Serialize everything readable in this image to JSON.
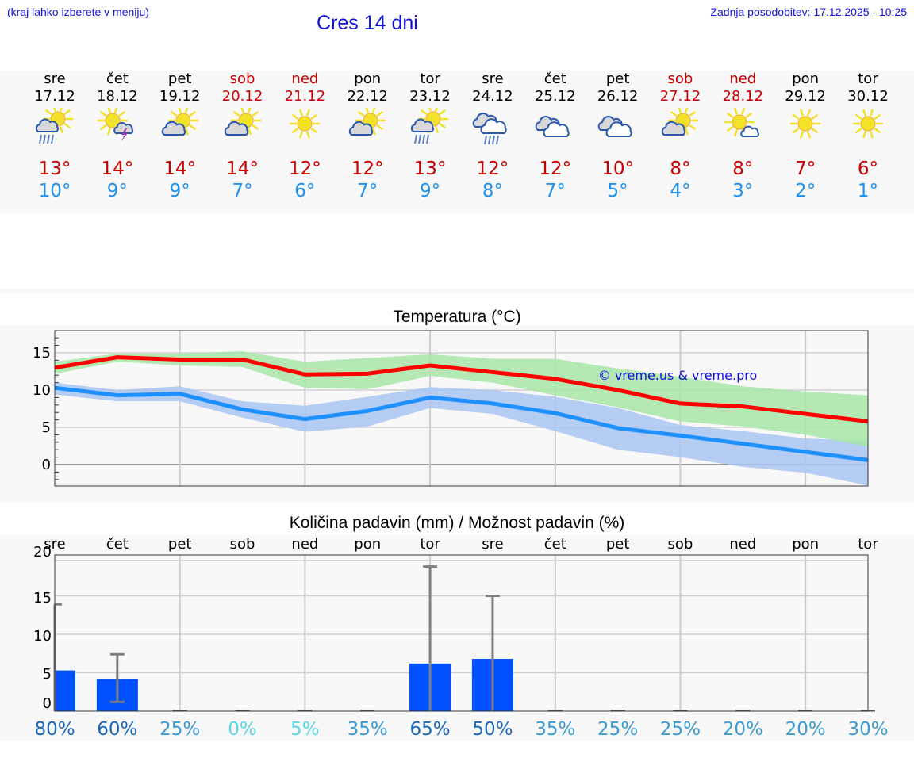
{
  "header": {
    "menu_hint": "(kraj lahko izberete v meniju)",
    "title": "Cres 14 dni",
    "last_update": "Zadnja posodobitev: 17.12.2025 - 10:25"
  },
  "days": [
    {
      "name": "sre",
      "date": "17.12",
      "weekend": false,
      "icon": "sun-cloud-rain-icon",
      "tmax": "13°",
      "tmin": "10°"
    },
    {
      "name": "čet",
      "date": "18.12",
      "weekend": false,
      "icon": "sun-cloud-thunder-icon",
      "tmax": "14°",
      "tmin": "9°"
    },
    {
      "name": "pet",
      "date": "19.12",
      "weekend": false,
      "icon": "sun-cloud-icon",
      "tmax": "14°",
      "tmin": "9°"
    },
    {
      "name": "sob",
      "date": "20.12",
      "weekend": true,
      "icon": "sun-cloud-icon",
      "tmax": "14°",
      "tmin": "7°"
    },
    {
      "name": "ned",
      "date": "21.12",
      "weekend": true,
      "icon": "sun-icon",
      "tmax": "12°",
      "tmin": "6°"
    },
    {
      "name": "pon",
      "date": "22.12",
      "weekend": false,
      "icon": "sun-cloud-icon",
      "tmax": "12°",
      "tmin": "7°"
    },
    {
      "name": "tor",
      "date": "23.12",
      "weekend": false,
      "icon": "sun-cloud-rain-icon",
      "tmax": "13°",
      "tmin": "9°"
    },
    {
      "name": "sre",
      "date": "24.12",
      "weekend": false,
      "icon": "clouds-rain-icon",
      "tmax": "12°",
      "tmin": "8°"
    },
    {
      "name": "čet",
      "date": "25.12",
      "weekend": false,
      "icon": "clouds-icon",
      "tmax": "12°",
      "tmin": "7°"
    },
    {
      "name": "pet",
      "date": "26.12",
      "weekend": false,
      "icon": "clouds-icon",
      "tmax": "10°",
      "tmin": "5°"
    },
    {
      "name": "sob",
      "date": "27.12",
      "weekend": true,
      "icon": "sun-cloud-icon",
      "tmax": "8°",
      "tmin": "4°"
    },
    {
      "name": "ned",
      "date": "28.12",
      "weekend": true,
      "icon": "sun-small-cloud-icon",
      "tmax": "8°",
      "tmin": "3°"
    },
    {
      "name": "pon",
      "date": "29.12",
      "weekend": false,
      "icon": "sun-icon",
      "tmax": "7°",
      "tmin": "2°"
    },
    {
      "name": "tor",
      "date": "30.12",
      "weekend": false,
      "icon": "sun-icon",
      "tmax": "6°",
      "tmin": "1°"
    }
  ],
  "colors": {
    "weekend": "#cc0000",
    "weekday": "#000000",
    "tmax_text": "#cc0000",
    "tmin_text": "#2090ee",
    "tmax_line": "#ff0000",
    "tmin_line": "#1e90ff",
    "tmax_band": "#a8e6a8",
    "tmin_band": "#a9c4f2",
    "precip_bar": "#0050ff",
    "error_bar": "#808080",
    "link_blue": "#1010e0"
  },
  "chart_data": [
    {
      "type": "line",
      "title": "Temperatura (°C)",
      "watermark": "© vreme.us & vreme.pro",
      "x": [
        "17.12",
        "18.12",
        "19.12",
        "20.12",
        "21.12",
        "22.12",
        "23.12",
        "24.12",
        "25.12",
        "26.12",
        "27.12",
        "28.12",
        "29.12",
        "30.12"
      ],
      "yticks": [
        0,
        5,
        10,
        15
      ],
      "ylim": [
        -2.9,
        18
      ],
      "grid": true,
      "series": [
        {
          "name": "Tmax",
          "color": "#ff0000",
          "values": [
            13.0,
            14.4,
            14.1,
            14.1,
            12.1,
            12.2,
            13.3,
            12.4,
            11.5,
            10.0,
            8.2,
            7.8,
            6.8,
            5.8
          ]
        },
        {
          "name": "Tmax band high",
          "values": [
            13.8,
            14.9,
            14.9,
            15.2,
            13.8,
            14.3,
            14.8,
            14.2,
            14.2,
            12.9,
            11.8,
            10.5,
            9.8,
            9.3
          ]
        },
        {
          "name": "Tmax band low",
          "values": [
            12.2,
            13.8,
            13.3,
            13.1,
            10.3,
            10.1,
            11.9,
            11.0,
            9.3,
            7.7,
            5.8,
            5.1,
            4.0,
            2.4
          ]
        },
        {
          "name": "Tmin",
          "color": "#1e90ff",
          "values": [
            10.3,
            9.3,
            9.5,
            7.4,
            6.1,
            7.2,
            9.0,
            8.2,
            6.9,
            4.9,
            3.9,
            2.8,
            1.7,
            0.6
          ]
        },
        {
          "name": "Tmin band high",
          "values": [
            11.0,
            10.0,
            10.5,
            8.5,
            7.9,
            9.1,
            10.4,
            10.0,
            9.1,
            7.6,
            5.3,
            4.5,
            3.5,
            3.2
          ]
        },
        {
          "name": "Tmin band low",
          "values": [
            9.4,
            8.5,
            8.5,
            6.3,
            4.4,
            5.1,
            7.6,
            6.8,
            4.5,
            2.0,
            1.0,
            -0.3,
            -1.1,
            -2.8
          ]
        }
      ]
    },
    {
      "type": "bar",
      "title": "Količina padavin (mm) / Možnost padavin (%)",
      "categories": [
        "sre",
        "čet",
        "pet",
        "sob",
        "ned",
        "pon",
        "tor",
        "sre",
        "čet",
        "pet",
        "sob",
        "ned",
        "pon",
        "tor"
      ],
      "yticks": [
        0,
        5,
        10,
        15,
        20
      ],
      "ylim": [
        0,
        20.3
      ],
      "grid": true,
      "series": [
        {
          "name": "Količina padavin (mm)",
          "color": "#0050ff",
          "values": [
            5.3,
            4.2,
            0,
            0,
            0,
            0,
            6.2,
            6.8,
            0,
            0,
            0,
            0,
            0,
            0
          ]
        },
        {
          "name": "Razpon min (mm)",
          "values": [
            0,
            1.2,
            0,
            0,
            0,
            0,
            0,
            0,
            0,
            0,
            0,
            0,
            0,
            0
          ]
        },
        {
          "name": "Razpon max (mm)",
          "values": [
            13.9,
            7.4,
            0,
            0,
            0,
            0,
            18.8,
            15.0,
            0,
            0,
            0,
            0,
            0,
            0
          ]
        }
      ],
      "probability": [
        "80%",
        "60%",
        "25%",
        "0%",
        "5%",
        "35%",
        "65%",
        "50%",
        "35%",
        "25%",
        "25%",
        "20%",
        "20%",
        "30%"
      ],
      "probability_colors": [
        "#1a66b8",
        "#1a66b8",
        "#3a9ad4",
        "#5ad6e4",
        "#5ad6e4",
        "#3a9ad4",
        "#1a66b8",
        "#1a66b8",
        "#3a9ad4",
        "#3a9ad4",
        "#3a9ad4",
        "#3a9ad4",
        "#3a9ad4",
        "#3a9ad4"
      ]
    }
  ]
}
